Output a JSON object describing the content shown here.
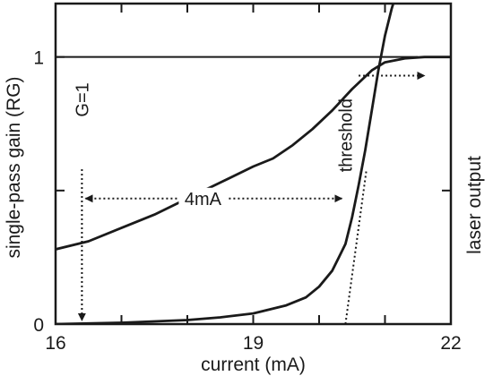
{
  "chart_data": {
    "type": "line",
    "xlabel": "current (mA)",
    "ylabel_left": "single-pass gain (RG)",
    "ylabel_right": "laser output",
    "xlim": [
      16,
      22
    ],
    "ylim": [
      0,
      1.2
    ],
    "x_ticks": [
      16,
      19,
      22
    ],
    "x_tick_labels": [
      "16",
      "19",
      "22"
    ],
    "y_ticks": [
      0,
      1
    ],
    "y_tick_labels": [
      "0",
      "1"
    ],
    "grid": false,
    "series": [
      {
        "key": "gain",
        "x": [
          16.0,
          16.5,
          17.0,
          17.5,
          18.0,
          18.5,
          19.0,
          19.3,
          19.6,
          19.9,
          20.2,
          20.5,
          20.8,
          21.0,
          21.3,
          21.6,
          22.0
        ],
        "y": [
          0.28,
          0.31,
          0.36,
          0.41,
          0.47,
          0.53,
          0.59,
          0.62,
          0.67,
          0.73,
          0.8,
          0.88,
          0.95,
          0.98,
          0.995,
          1.0,
          1.0
        ]
      },
      {
        "key": "output",
        "x": [
          16.0,
          17.0,
          18.0,
          18.5,
          19.0,
          19.5,
          19.8,
          20.0,
          20.2,
          20.3,
          20.4,
          20.5,
          20.6,
          20.7,
          20.8,
          20.9,
          21.0,
          21.1,
          21.2
        ],
        "y": [
          0.0,
          0.005,
          0.015,
          0.025,
          0.04,
          0.07,
          0.1,
          0.14,
          0.2,
          0.25,
          0.3,
          0.4,
          0.52,
          0.65,
          0.8,
          0.95,
          1.08,
          1.18,
          1.26
        ]
      }
    ],
    "reference_lines": [
      {
        "key": "unity",
        "y": 1,
        "x_from": 16.0,
        "x_to": 21.5
      }
    ],
    "annotations": {
      "g_equals_one": {
        "text": "G=1",
        "x": 16.4,
        "y_top": 0.58,
        "y_bottom": 0.0
      },
      "width_4ma": {
        "text": "4mA",
        "x_from": 16.4,
        "x_to": 20.4,
        "y": 0.47
      },
      "threshold": {
        "text": "threshold",
        "x": 20.4,
        "y": 0.68
      },
      "laser_output_arrow": {
        "x_from": 20.6,
        "x_to": 21.6,
        "y": 0.93
      },
      "tangent_line": {
        "x0": 20.4,
        "y0": 0.0,
        "x1": 20.72,
        "y1": 0.58
      }
    }
  }
}
